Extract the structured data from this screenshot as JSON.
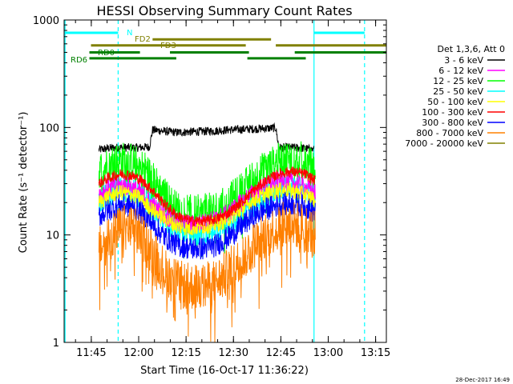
{
  "chart_data": {
    "type": "line",
    "title": "HESSI Observing Summary Count Rates",
    "xlabel": "Start Time (16-Oct-17 11:36:22)",
    "ylabel": "Count Rate (s⁻¹ detector⁻¹)",
    "yscale": "log",
    "ylim": [
      1,
      1000
    ],
    "x_unit": "minutes after 11:36:22",
    "xlim": [
      0,
      102
    ],
    "x_ticks": [
      {
        "t": 8.6,
        "label": "11:45"
      },
      {
        "t": 23.6,
        "label": "12:00"
      },
      {
        "t": 38.6,
        "label": "12:15"
      },
      {
        "t": 53.6,
        "label": "12:30"
      },
      {
        "t": 68.6,
        "label": "12:45"
      },
      {
        "t": 83.6,
        "label": "13:00"
      },
      {
        "t": 98.6,
        "label": "13:15"
      }
    ],
    "y_ticks": [
      {
        "v": 1,
        "label": "1"
      },
      {
        "v": 10,
        "label": "10"
      },
      {
        "v": 100,
        "label": "100"
      },
      {
        "v": 1000,
        "label": "1000"
      }
    ],
    "legend": {
      "placement": "right",
      "title": "Det 1,3,6, Att 0",
      "items": [
        {
          "name": "3 - 6 keV",
          "color": "#000000"
        },
        {
          "name": "6 - 12 keV",
          "color": "#ff00ff"
        },
        {
          "name": "12 - 25 keV",
          "color": "#00ff00"
        },
        {
          "name": "25 - 50 keV",
          "color": "#00ffff"
        },
        {
          "name": "50 - 100 keV",
          "color": "#ffff00"
        },
        {
          "name": "100 - 300 keV",
          "color": "#ff0000"
        },
        {
          "name": "300 - 800 keV",
          "color": "#0000ff"
        },
        {
          "name": "800 - 7000 keV",
          "color": "#ff8000"
        },
        {
          "name": "7000 - 20000 keV",
          "color": "#808000"
        }
      ]
    },
    "series": [
      {
        "name": "3 - 6 keV",
        "color": "#000000",
        "points": [
          [
            11,
            62
          ],
          [
            14,
            64
          ],
          [
            17,
            65
          ],
          [
            20,
            65
          ],
          [
            24,
            65
          ],
          [
            27,
            66
          ],
          [
            28,
            95
          ],
          [
            32,
            92
          ],
          [
            36,
            90
          ],
          [
            40,
            91
          ],
          [
            44,
            92
          ],
          [
            48,
            93
          ],
          [
            52,
            95
          ],
          [
            56,
            96
          ],
          [
            60,
            97
          ],
          [
            64,
            98
          ],
          [
            67,
            99
          ],
          [
            68,
            65
          ],
          [
            72,
            65
          ],
          [
            76,
            64
          ],
          [
            79,
            62
          ]
        ],
        "jitter": 0.08
      },
      {
        "name": "12 - 25 keV",
        "color": "#00ff00",
        "points": [
          [
            11,
            40
          ],
          [
            14,
            46
          ],
          [
            18,
            50
          ],
          [
            21,
            49
          ],
          [
            23,
            46
          ],
          [
            26,
            40
          ],
          [
            29,
            30
          ],
          [
            32,
            23
          ],
          [
            35,
            18
          ],
          [
            39,
            16
          ],
          [
            43,
            16
          ],
          [
            47,
            17
          ],
          [
            51,
            19
          ],
          [
            55,
            24
          ],
          [
            59,
            32
          ],
          [
            63,
            40
          ],
          [
            67,
            47
          ],
          [
            71,
            52
          ],
          [
            75,
            50
          ],
          [
            78,
            44
          ],
          [
            79.5,
            38
          ]
        ],
        "jitter": 0.35
      },
      {
        "name": "25 - 50 keV",
        "color": "#00ffff",
        "points": [
          [
            11,
            20
          ],
          [
            14,
            24
          ],
          [
            18,
            27
          ],
          [
            21,
            26
          ],
          [
            23,
            24
          ],
          [
            26,
            21
          ],
          [
            29,
            16
          ],
          [
            32,
            13
          ],
          [
            35,
            11
          ],
          [
            39,
            10
          ],
          [
            43,
            10
          ],
          [
            47,
            10.5
          ],
          [
            51,
            12
          ],
          [
            55,
            14
          ],
          [
            59,
            18
          ],
          [
            63,
            22
          ],
          [
            67,
            26
          ],
          [
            71,
            28
          ],
          [
            75,
            27
          ],
          [
            78,
            24
          ],
          [
            79.5,
            21
          ]
        ],
        "jitter": 0.25
      },
      {
        "name": "6 - 12 keV",
        "color": "#ff00ff",
        "points": [
          [
            11,
            24
          ],
          [
            14,
            27
          ],
          [
            18,
            29
          ],
          [
            21,
            28
          ],
          [
            24,
            25
          ],
          [
            28,
            19
          ],
          [
            32,
            15
          ],
          [
            36,
            13
          ],
          [
            40,
            12.5
          ],
          [
            44,
            13
          ],
          [
            48,
            14
          ],
          [
            52,
            16
          ],
          [
            56,
            20
          ],
          [
            60,
            25
          ],
          [
            64,
            29
          ],
          [
            68,
            32
          ],
          [
            72,
            31
          ],
          [
            76,
            28
          ],
          [
            79.5,
            25
          ]
        ],
        "jitter": 0.18
      },
      {
        "name": "50 - 100 keV",
        "color": "#ffff00",
        "points": [
          [
            11,
            20
          ],
          [
            14,
            23
          ],
          [
            18,
            25
          ],
          [
            21,
            24
          ],
          [
            24,
            22
          ],
          [
            28,
            17
          ],
          [
            32,
            14
          ],
          [
            36,
            12
          ],
          [
            40,
            11.5
          ],
          [
            44,
            12
          ],
          [
            48,
            12.5
          ],
          [
            52,
            14
          ],
          [
            56,
            17
          ],
          [
            60,
            21
          ],
          [
            64,
            24
          ],
          [
            68,
            26
          ],
          [
            72,
            26
          ],
          [
            76,
            24
          ],
          [
            79.5,
            21
          ]
        ],
        "jitter": 0.15
      },
      {
        "name": "100 - 300 keV",
        "color": "#ff0000",
        "points": [
          [
            11,
            30
          ],
          [
            14,
            34
          ],
          [
            18,
            37
          ],
          [
            21,
            36
          ],
          [
            24,
            33
          ],
          [
            28,
            26
          ],
          [
            32,
            19
          ],
          [
            36,
            15
          ],
          [
            40,
            13.5
          ],
          [
            44,
            13.5
          ],
          [
            48,
            14
          ],
          [
            52,
            16
          ],
          [
            56,
            20
          ],
          [
            60,
            26
          ],
          [
            64,
            32
          ],
          [
            68,
            37
          ],
          [
            72,
            39
          ],
          [
            76,
            37
          ],
          [
            79.5,
            32
          ]
        ],
        "jitter": 0.1
      },
      {
        "name": "300 - 800 keV",
        "color": "#0000ff",
        "points": [
          [
            11,
            15
          ],
          [
            14,
            17
          ],
          [
            18,
            19
          ],
          [
            21,
            18.5
          ],
          [
            24,
            16.5
          ],
          [
            28,
            12.5
          ],
          [
            32,
            9.5
          ],
          [
            36,
            8
          ],
          [
            40,
            7.5
          ],
          [
            44,
            7.5
          ],
          [
            48,
            8
          ],
          [
            52,
            9.5
          ],
          [
            56,
            12
          ],
          [
            60,
            15
          ],
          [
            64,
            17.5
          ],
          [
            68,
            19
          ],
          [
            72,
            19.5
          ],
          [
            76,
            18.5
          ],
          [
            79.5,
            16
          ]
        ],
        "jitter": 0.22
      },
      {
        "name": "800 - 7000 keV",
        "color": "#ff8000",
        "points": [
          [
            11,
            7
          ],
          [
            14,
            9.5
          ],
          [
            18,
            11.5
          ],
          [
            21,
            11.5
          ],
          [
            24,
            10
          ],
          [
            28,
            7
          ],
          [
            32,
            4.5
          ],
          [
            36,
            3.5
          ],
          [
            40,
            3.3
          ],
          [
            44,
            3.3
          ],
          [
            48,
            3.6
          ],
          [
            52,
            4.5
          ],
          [
            56,
            6
          ],
          [
            60,
            8
          ],
          [
            64,
            10
          ],
          [
            68,
            12
          ],
          [
            72,
            12.5
          ],
          [
            76,
            12
          ],
          [
            79.5,
            10
          ]
        ],
        "jitter": 0.45
      }
    ],
    "vertical_lines": [
      {
        "t": 0.3,
        "style": "solid",
        "color": "#00ffff"
      },
      {
        "t": 17.1,
        "style": "dashed",
        "color": "#00ffff"
      },
      {
        "t": 79.1,
        "style": "solid",
        "color": "#00ffff"
      },
      {
        "t": 95.1,
        "style": "dashed",
        "color": "#00ffff"
      }
    ],
    "flag_bars": [
      {
        "label": "N",
        "color": "#00ffff",
        "level": 760,
        "segments": [
          [
            0.3,
            17.1
          ],
          [
            79.1,
            95.1
          ]
        ]
      },
      {
        "label": "FD2",
        "color": "#808000",
        "level": 660,
        "segments": [
          [
            28,
            65.5
          ]
        ]
      },
      {
        "label": "FD3",
        "color": "#808000",
        "level": 580,
        "segments": [
          [
            8.5,
            57.5
          ],
          [
            67,
            102
          ]
        ]
      },
      {
        "label": "RD0",
        "color": "#008000",
        "level": 500,
        "segments": [
          [
            8,
            24
          ],
          [
            33.5,
            58.5
          ],
          [
            73,
            102
          ]
        ]
      },
      {
        "label": "RD6",
        "color": "#008000",
        "level": 440,
        "segments": [
          [
            8,
            35.5
          ],
          [
            58,
            76.5
          ]
        ]
      }
    ]
  },
  "footer": {
    "timestamp": "28-Dec-2017 16:49"
  }
}
